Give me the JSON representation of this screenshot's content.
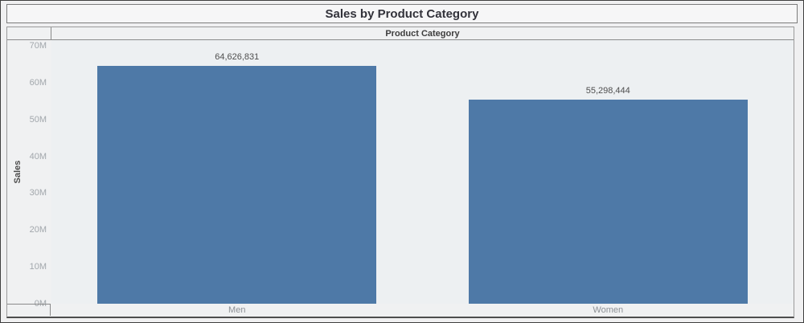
{
  "title": {
    "text": "Sales by Product Category"
  },
  "chart_data": {
    "type": "bar",
    "title": "Sales by Product Category",
    "xlabel": "Product Category",
    "ylabel": "Sales",
    "categories": [
      "Men",
      "Women"
    ],
    "values": [
      64626831,
      55298444
    ],
    "value_labels": [
      "64,626,831",
      "55,298,444"
    ],
    "ylim": [
      0,
      70000000
    ],
    "ytick_values": [
      0,
      10000000,
      20000000,
      30000000,
      40000000,
      50000000,
      60000000,
      70000000
    ],
    "ytick_labels": [
      "0M",
      "10M",
      "20M",
      "30M",
      "40M",
      "50M",
      "60M",
      "70M"
    ],
    "bar_color": "#4e79a7",
    "grid": false,
    "legend": "none"
  },
  "colors": {
    "bar": "#4e79a7",
    "plot_background": "#edf0f2",
    "canvas_background": "#f0f0f1",
    "tick_label": "#a2a7ac",
    "category_label": "#8d9196",
    "value_label": "#4e4e4e"
  }
}
